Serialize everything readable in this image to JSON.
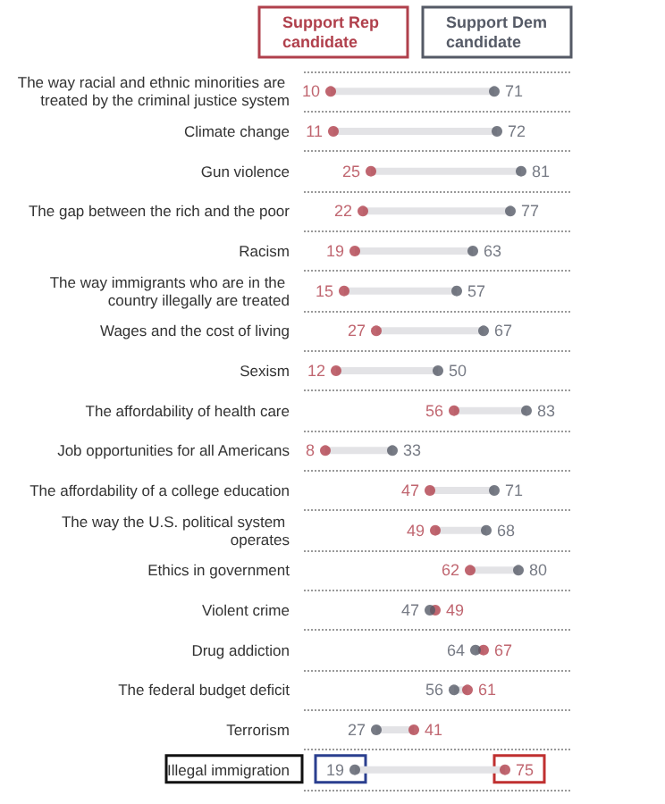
{
  "chart_data": {
    "type": "scatter",
    "orientation": "horizontal",
    "categories": [
      "The way racial and ethnic minorities are treated by the criminal justice system",
      "Climate change",
      "Gun violence",
      "The gap between the rich and the poor",
      "Racism",
      "The way immigrants who are in the country illegally are treated",
      "Wages and the cost of living",
      "Sexism",
      "The affordability of health care",
      "Job opportunities for all Americans",
      "The affordability of a college education",
      "The way the U.S. political system operates",
      "Ethics in government",
      "Violent crime",
      "Drug addiction",
      "The federal budget deficit",
      "Terrorism",
      "Illegal immigration"
    ],
    "series": [
      {
        "name": "Support Rep candidate",
        "color": "#b0404c",
        "values": [
          10,
          11,
          25,
          22,
          19,
          15,
          27,
          12,
          56,
          8,
          47,
          49,
          62,
          49,
          67,
          61,
          41,
          75
        ]
      },
      {
        "name": "Support Dem candidate",
        "color": "#555a66",
        "values": [
          71,
          72,
          81,
          77,
          63,
          57,
          67,
          50,
          83,
          33,
          71,
          68,
          80,
          47,
          64,
          56,
          27,
          19
        ]
      }
    ],
    "xlim": [
      0,
      100
    ],
    "tick_labels": "y",
    "data_labels": true,
    "grid": "y",
    "legend": "top",
    "marker": "circle"
  }
}
